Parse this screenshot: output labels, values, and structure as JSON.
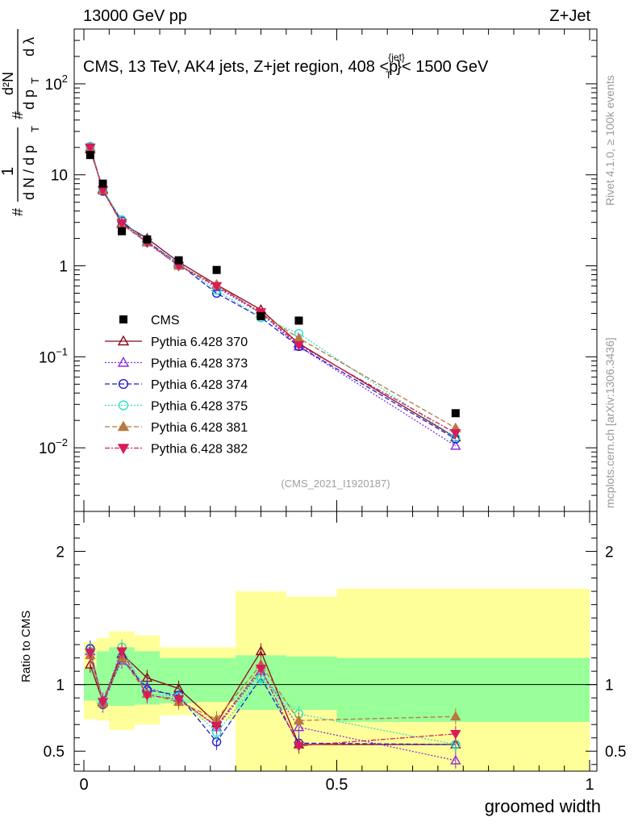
{
  "header": {
    "left": "13000 GeV pp",
    "right": "Z+Jet"
  },
  "side": {
    "rivet": "Rivet 4.1.0, ≥ 100k events",
    "mcplots": "mcplots.cern.ch [arXiv:1306.3436]"
  },
  "top_panel": {
    "title": "CMS, 13 TeV, AK4 jets, Z+jet region, 408 <p",
    "title_sup": "{jet}",
    "title_sub": "T",
    "title_end": "}< 1500 GeV",
    "ylabel_main": "# 1 / d N / d p_T  # d²N / d p_T dλ",
    "watermark": "(CMS_2021_I1920187)",
    "yticks": [
      {
        "value": 0.01,
        "base": "10",
        "exp": "−2"
      },
      {
        "value": 0.1,
        "base": "10",
        "exp": "−1"
      },
      {
        "value": 1,
        "base": "1",
        "exp": ""
      },
      {
        "value": 10,
        "base": "10",
        "exp": ""
      },
      {
        "value": 100,
        "base": "10",
        "exp": "2"
      }
    ]
  },
  "bottom_panel": {
    "ylabel": "Ratio to CMS",
    "yticks": [
      {
        "value": 0.5,
        "label": "0.5"
      },
      {
        "value": 1,
        "label": "1"
      },
      {
        "value": 2,
        "label": "2"
      }
    ],
    "xlabel": "groomed width",
    "xticks": [
      {
        "value": 0,
        "label": "0"
      },
      {
        "value": 0.5,
        "label": "0.5"
      },
      {
        "value": 1,
        "label": "1"
      }
    ]
  },
  "chart_data": {
    "type": "scatter",
    "x_range": [
      0,
      1
    ],
    "y_range_main": [
      0.002,
      400
    ],
    "y_range_ratio": [
      0.35,
      2.3
    ],
    "bin_edges": [
      0,
      0.025,
      0.05,
      0.1,
      0.15,
      0.225,
      0.3,
      0.4,
      0.5,
      1.0
    ],
    "x": [
      0.0125,
      0.0375,
      0.075,
      0.125,
      0.1875,
      0.2625,
      0.35,
      0.425,
      0.735
    ],
    "data": {
      "name": "CMS",
      "values": [
        16.5,
        8.0,
        2.4,
        1.95,
        1.15,
        0.9,
        0.28,
        0.25,
        0.024
      ]
    },
    "data_band_green": [
      [
        0.88,
        1.12
      ],
      [
        0.85,
        1.25
      ],
      [
        0.84,
        1.28
      ],
      [
        0.85,
        1.25
      ],
      [
        0.86,
        1.2
      ],
      [
        0.87,
        1.2
      ],
      [
        0.81,
        1.22
      ],
      [
        0.81,
        1.21
      ],
      [
        0.72,
        1.2
      ]
    ],
    "data_band_yellow": [
      [
        0.74,
        1.32
      ],
      [
        0.73,
        1.35
      ],
      [
        0.66,
        1.4
      ],
      [
        0.7,
        1.37
      ],
      [
        0.77,
        1.28
      ],
      [
        0.73,
        1.28
      ],
      [
        0.35,
        1.7
      ],
      [
        0.35,
        1.66
      ],
      [
        0.35,
        1.72
      ]
    ],
    "series": [
      {
        "name": "Pythia 6.428 370",
        "color": "#8b0a1a",
        "dash": "",
        "marker": "triangle-open",
        "values": [
          19.0,
          6.9,
          2.95,
          2.0,
          1.1,
          0.62,
          0.33,
          0.14,
          0.013
        ],
        "ratios": [
          1.15,
          0.87,
          1.23,
          1.05,
          0.97,
          0.71,
          1.25,
          0.55,
          0.55
        ]
      },
      {
        "name": "Pythia 6.428 373",
        "color": "#8a2be2",
        "dash": "2,2",
        "marker": "triangle-open",
        "values": [
          20.0,
          7.0,
          2.85,
          1.85,
          1.05,
          0.58,
          0.3,
          0.13,
          0.0105
        ],
        "ratios": [
          1.25,
          0.88,
          1.18,
          0.98,
          0.9,
          0.68,
          1.1,
          0.68,
          0.43
        ]
      },
      {
        "name": "Pythia 6.428 374",
        "color": "#1c1cd6",
        "dash": "6,3",
        "marker": "circle-open",
        "values": [
          20.5,
          6.6,
          3.1,
          1.85,
          1.05,
          0.5,
          0.27,
          0.13,
          0.0125
        ],
        "ratios": [
          1.27,
          0.85,
          1.2,
          0.96,
          0.92,
          0.57,
          1.05,
          0.56,
          0.55
        ]
      },
      {
        "name": "Pythia 6.428 375",
        "color": "#2ee0c8",
        "dash": "2,2",
        "marker": "circle-open",
        "values": [
          20.5,
          6.9,
          3.2,
          1.8,
          1.05,
          0.54,
          0.27,
          0.18,
          0.013
        ],
        "ratios": [
          1.25,
          0.86,
          1.28,
          0.93,
          0.91,
          0.64,
          1.05,
          0.78,
          0.55
        ]
      },
      {
        "name": "Pythia 6.428 381",
        "color": "#b87840",
        "dash": "6,3",
        "marker": "triangle-filled",
        "values": [
          19.5,
          6.7,
          2.85,
          1.8,
          1.0,
          0.62,
          0.3,
          0.16,
          0.0165
        ],
        "ratios": [
          1.22,
          0.86,
          1.2,
          0.93,
          0.87,
          0.74,
          1.15,
          0.73,
          0.76
        ]
      },
      {
        "name": "Pythia 6.428 382",
        "color": "#d81c5a",
        "dash": "6,2,2,2",
        "marker": "triangle-down-filled",
        "values": [
          20.0,
          6.8,
          2.95,
          1.8,
          1.0,
          0.6,
          0.31,
          0.135,
          0.0145
        ],
        "ratios": [
          1.24,
          0.87,
          1.25,
          0.92,
          0.89,
          0.69,
          1.12,
          0.54,
          0.63
        ]
      }
    ],
    "legend_position": "middle-left"
  }
}
